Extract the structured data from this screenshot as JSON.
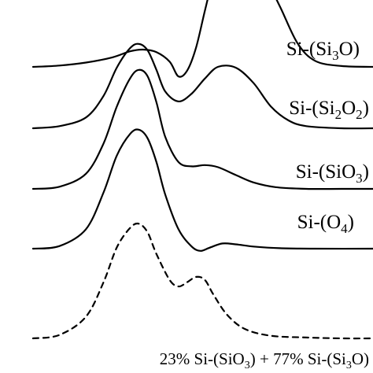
{
  "chart_data": {
    "type": "line",
    "title": "",
    "xlabel": "",
    "ylabel": "",
    "grid": false,
    "series": [
      {
        "name": "Si-(Si3O)",
        "label": {
          "main": "Si-(Si",
          "sub1": "3",
          "mid": "O",
          "sub2": "",
          "end": ")"
        },
        "style": "solid",
        "x": [
          0.0,
          0.06,
          0.12,
          0.18,
          0.22,
          0.25,
          0.28,
          0.31,
          0.33,
          0.35,
          0.37,
          0.39,
          0.41,
          0.43,
          0.45,
          0.48,
          0.52,
          0.56,
          0.6,
          0.64,
          0.7,
          0.78
        ],
        "y": [
          0.0,
          0.03,
          0.1,
          0.22,
          0.36,
          0.4,
          0.34,
          0.12,
          -0.22,
          -0.08,
          0.45,
          1.3,
          2.1,
          2.6,
          2.8,
          2.7,
          2.2,
          1.4,
          0.55,
          0.14,
          0.02,
          0.0
        ]
      },
      {
        "name": "Si-(Si2O2)",
        "label": {
          "main": "Si-(Si",
          "sub1": "2",
          "mid": "O",
          "sub2": "2",
          "end": ")"
        },
        "style": "solid",
        "x": [
          0.0,
          0.06,
          0.12,
          0.16,
          0.19,
          0.22,
          0.24,
          0.26,
          0.28,
          0.3,
          0.33,
          0.36,
          0.39,
          0.42,
          0.46,
          0.5,
          0.54,
          0.58,
          0.62,
          0.7,
          0.78
        ],
        "y": [
          0.0,
          0.05,
          0.25,
          0.75,
          1.4,
          1.85,
          1.95,
          1.8,
          1.35,
          0.85,
          0.62,
          0.8,
          1.15,
          1.42,
          1.4,
          1.05,
          0.5,
          0.18,
          0.05,
          0.0,
          0.0
        ]
      },
      {
        "name": "Si-(SiO3)",
        "label": {
          "main": "Si-(Si",
          "sub1": "",
          "mid": "O",
          "sub2": "3",
          "end": ")"
        },
        "style": "solid",
        "x": [
          0.0,
          0.06,
          0.12,
          0.16,
          0.19,
          0.22,
          0.24,
          0.26,
          0.28,
          0.3,
          0.33,
          0.36,
          0.39,
          0.42,
          0.46,
          0.5,
          0.55,
          0.62,
          0.7,
          0.78
        ],
        "y": [
          0.0,
          0.05,
          0.35,
          1.05,
          1.9,
          2.55,
          2.75,
          2.6,
          2.0,
          1.2,
          0.62,
          0.52,
          0.55,
          0.5,
          0.32,
          0.15,
          0.04,
          0.0,
          0.0,
          0.0
        ]
      },
      {
        "name": "Si-(O4)",
        "label": {
          "main": "Si-(",
          "sub1": "",
          "mid": "O",
          "sub2": "4",
          "end": ")"
        },
        "style": "solid",
        "x": [
          0.0,
          0.06,
          0.12,
          0.16,
          0.19,
          0.22,
          0.24,
          0.26,
          0.28,
          0.3,
          0.33,
          0.36,
          0.38,
          0.4,
          0.43,
          0.46,
          0.5,
          0.56,
          0.64,
          0.78
        ],
        "y": [
          0.0,
          0.06,
          0.45,
          1.3,
          2.15,
          2.65,
          2.75,
          2.55,
          2.0,
          1.25,
          0.45,
          0.05,
          -0.05,
          0.02,
          0.12,
          0.1,
          0.05,
          0.01,
          0.0,
          0.0
        ]
      },
      {
        "name": "23% Si-(SiO3) + 77% Si-(Si3O)",
        "style": "dashed",
        "x": [
          0.0,
          0.06,
          0.12,
          0.16,
          0.19,
          0.22,
          0.24,
          0.26,
          0.28,
          0.31,
          0.33,
          0.35,
          0.37,
          0.39,
          0.41,
          0.44,
          0.48,
          0.54,
          0.62,
          0.7,
          0.78
        ],
        "y": [
          0.0,
          0.08,
          0.5,
          1.3,
          2.1,
          2.55,
          2.65,
          2.45,
          1.95,
          1.35,
          1.2,
          1.3,
          1.42,
          1.35,
          1.0,
          0.55,
          0.22,
          0.06,
          0.02,
          0.0,
          0.0
        ]
      }
    ],
    "caption": {
      "part1": "23% Si-(SiO",
      "sub1": "3",
      "part2": ") + 77% Si-(Si",
      "sub2": "3",
      "part3": "O)"
    }
  }
}
